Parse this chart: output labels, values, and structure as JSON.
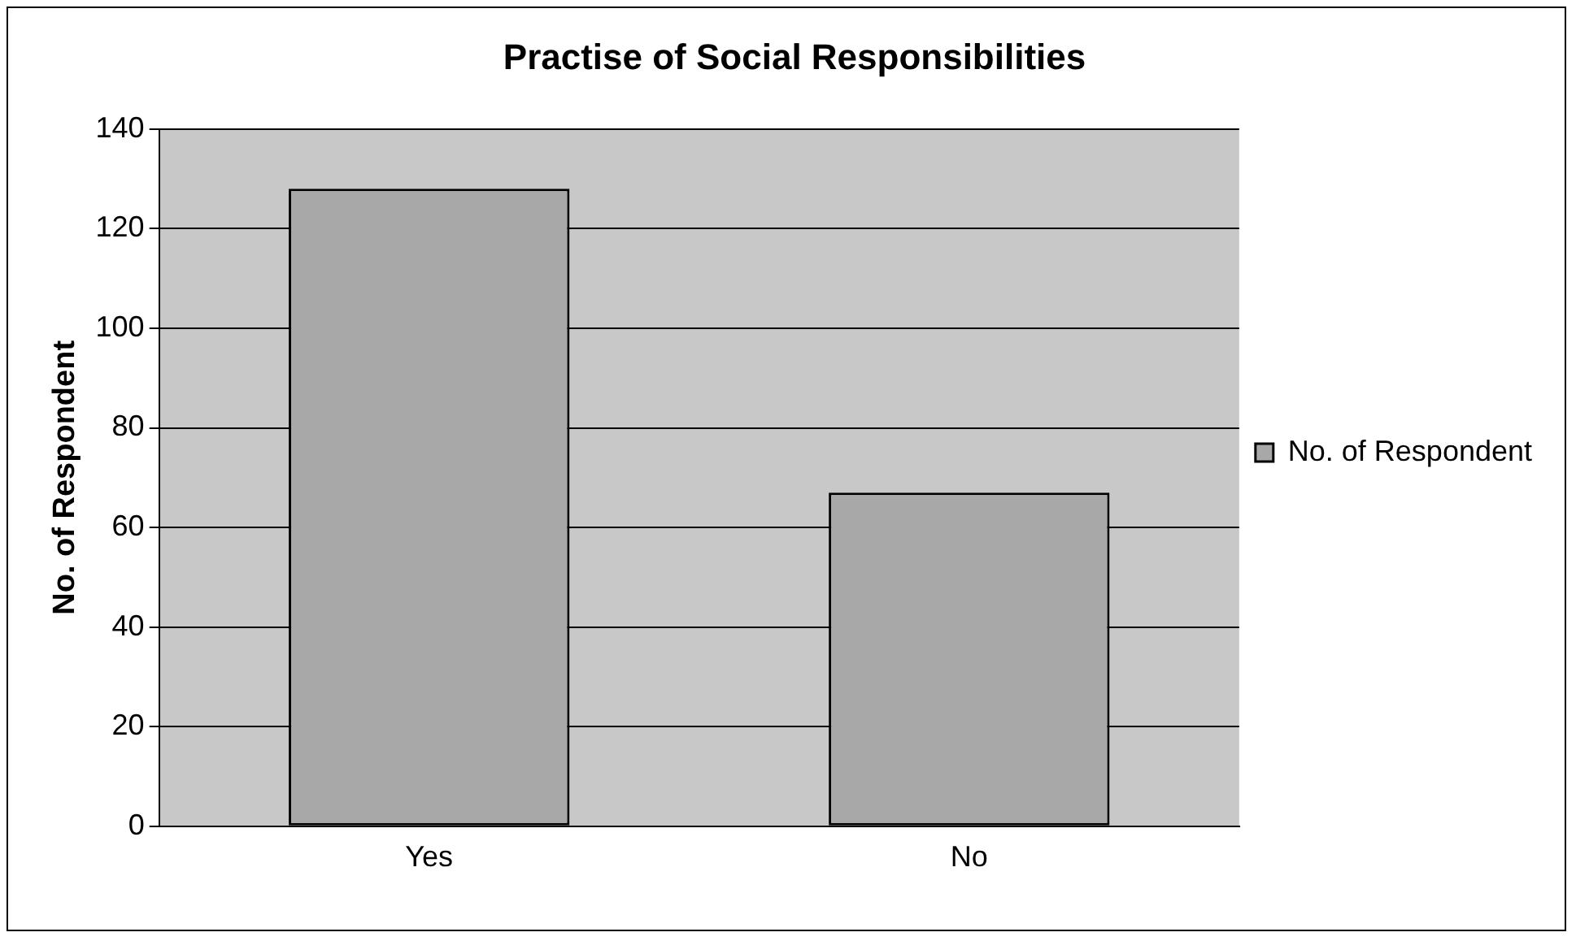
{
  "chart_data": {
    "type": "bar",
    "title": "Practise of Social Responsibilities",
    "ylabel": "No. of Respondent",
    "categories": [
      "Yes",
      "No"
    ],
    "series": [
      {
        "name": "No. of Respondent",
        "color": "#a8a8a8",
        "values": [
          128,
          67
        ]
      }
    ],
    "ylim": [
      0,
      140
    ],
    "yticks": [
      0,
      20,
      40,
      60,
      80,
      100,
      120,
      140
    ],
    "grid": "y",
    "legend": "right"
  }
}
